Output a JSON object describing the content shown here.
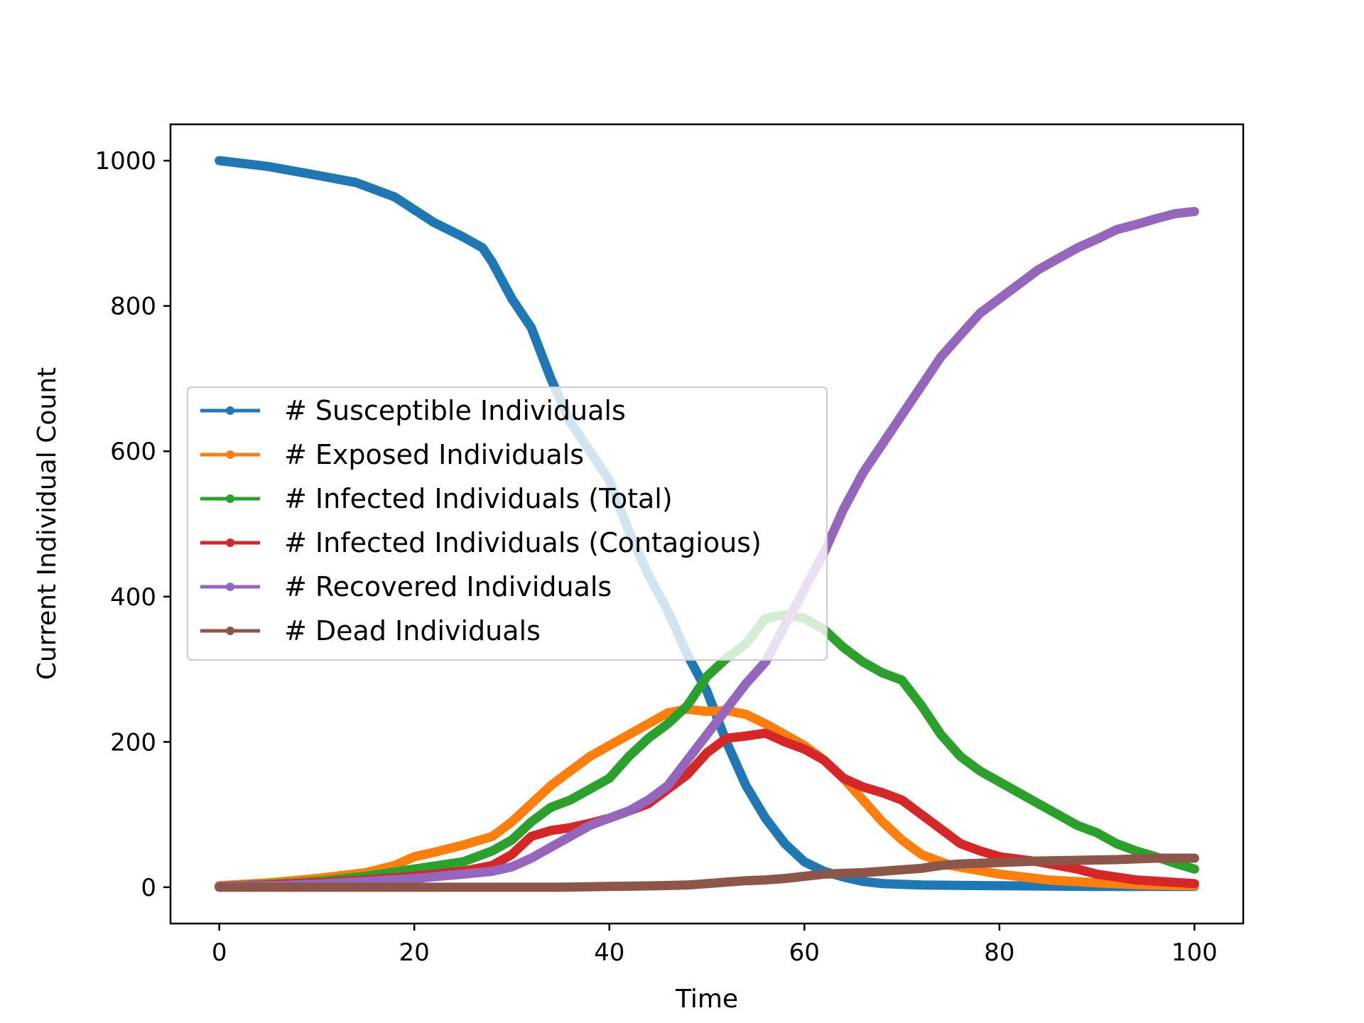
{
  "chart_data": {
    "type": "line",
    "title": "",
    "xlabel": "Time",
    "ylabel": "Current Individual Count",
    "xlim": [
      -5,
      105
    ],
    "ylim": [
      -50,
      1050
    ],
    "xticks": [
      0,
      20,
      40,
      60,
      80,
      100
    ],
    "yticks": [
      0,
      200,
      400,
      600,
      800,
      1000
    ],
    "grid": false,
    "legend_position": "center-left",
    "series": [
      {
        "name": "# Susceptible Individuals",
        "color": "#1f77b4",
        "points": [
          [
            0,
            1000
          ],
          [
            5,
            992
          ],
          [
            10,
            980
          ],
          [
            14,
            970
          ],
          [
            18,
            950
          ],
          [
            22,
            915
          ],
          [
            25,
            895
          ],
          [
            27,
            880
          ],
          [
            28,
            860
          ],
          [
            30,
            810
          ],
          [
            32,
            770
          ],
          [
            34,
            700
          ],
          [
            36,
            640
          ],
          [
            38,
            600
          ],
          [
            40,
            560
          ],
          [
            42,
            490
          ],
          [
            44,
            430
          ],
          [
            46,
            380
          ],
          [
            48,
            320
          ],
          [
            50,
            270
          ],
          [
            52,
            200
          ],
          [
            54,
            140
          ],
          [
            56,
            95
          ],
          [
            58,
            60
          ],
          [
            60,
            35
          ],
          [
            62,
            22
          ],
          [
            64,
            14
          ],
          [
            66,
            8
          ],
          [
            68,
            5
          ],
          [
            72,
            3
          ],
          [
            80,
            2
          ],
          [
            90,
            1
          ],
          [
            100,
            1
          ]
        ]
      },
      {
        "name": "# Exposed Individuals",
        "color": "#ff7f0e",
        "points": [
          [
            0,
            2
          ],
          [
            5,
            6
          ],
          [
            10,
            12
          ],
          [
            15,
            20
          ],
          [
            18,
            30
          ],
          [
            20,
            42
          ],
          [
            22,
            48
          ],
          [
            25,
            58
          ],
          [
            28,
            70
          ],
          [
            30,
            90
          ],
          [
            32,
            115
          ],
          [
            34,
            140
          ],
          [
            36,
            160
          ],
          [
            38,
            180
          ],
          [
            40,
            195
          ],
          [
            42,
            210
          ],
          [
            44,
            225
          ],
          [
            46,
            240
          ],
          [
            48,
            245
          ],
          [
            50,
            242
          ],
          [
            52,
            243
          ],
          [
            54,
            238
          ],
          [
            56,
            225
          ],
          [
            58,
            210
          ],
          [
            60,
            195
          ],
          [
            62,
            175
          ],
          [
            64,
            150
          ],
          [
            66,
            120
          ],
          [
            68,
            90
          ],
          [
            70,
            65
          ],
          [
            72,
            45
          ],
          [
            75,
            30
          ],
          [
            80,
            18
          ],
          [
            85,
            10
          ],
          [
            90,
            6
          ],
          [
            95,
            3
          ],
          [
            100,
            2
          ]
        ]
      },
      {
        "name": "# Infected Individuals (Total)",
        "color": "#2ca02c",
        "points": [
          [
            0,
            1
          ],
          [
            5,
            4
          ],
          [
            10,
            8
          ],
          [
            15,
            15
          ],
          [
            20,
            25
          ],
          [
            25,
            35
          ],
          [
            28,
            50
          ],
          [
            30,
            65
          ],
          [
            32,
            90
          ],
          [
            34,
            110
          ],
          [
            36,
            120
          ],
          [
            38,
            135
          ],
          [
            40,
            150
          ],
          [
            42,
            180
          ],
          [
            44,
            205
          ],
          [
            46,
            225
          ],
          [
            48,
            250
          ],
          [
            50,
            290
          ],
          [
            52,
            315
          ],
          [
            54,
            335
          ],
          [
            56,
            370
          ],
          [
            58,
            375
          ],
          [
            60,
            370
          ],
          [
            62,
            355
          ],
          [
            64,
            330
          ],
          [
            66,
            310
          ],
          [
            68,
            295
          ],
          [
            70,
            285
          ],
          [
            72,
            250
          ],
          [
            74,
            210
          ],
          [
            76,
            180
          ],
          [
            78,
            160
          ],
          [
            80,
            145
          ],
          [
            82,
            130
          ],
          [
            84,
            115
          ],
          [
            86,
            100
          ],
          [
            88,
            85
          ],
          [
            90,
            75
          ],
          [
            92,
            60
          ],
          [
            94,
            50
          ],
          [
            96,
            42
          ],
          [
            98,
            33
          ],
          [
            100,
            25
          ]
        ]
      },
      {
        "name": "# Infected Individuals (Contagious)",
        "color": "#d62728",
        "points": [
          [
            0,
            1
          ],
          [
            5,
            3
          ],
          [
            10,
            6
          ],
          [
            15,
            10
          ],
          [
            20,
            15
          ],
          [
            25,
            22
          ],
          [
            28,
            30
          ],
          [
            30,
            45
          ],
          [
            32,
            70
          ],
          [
            34,
            78
          ],
          [
            36,
            82
          ],
          [
            38,
            88
          ],
          [
            40,
            95
          ],
          [
            42,
            105
          ],
          [
            44,
            115
          ],
          [
            46,
            135
          ],
          [
            48,
            155
          ],
          [
            50,
            185
          ],
          [
            52,
            205
          ],
          [
            54,
            208
          ],
          [
            56,
            212
          ],
          [
            58,
            200
          ],
          [
            60,
            190
          ],
          [
            62,
            175
          ],
          [
            64,
            150
          ],
          [
            66,
            138
          ],
          [
            68,
            130
          ],
          [
            70,
            120
          ],
          [
            72,
            100
          ],
          [
            74,
            80
          ],
          [
            76,
            60
          ],
          [
            78,
            50
          ],
          [
            80,
            42
          ],
          [
            84,
            35
          ],
          [
            88,
            25
          ],
          [
            90,
            18
          ],
          [
            94,
            10
          ],
          [
            100,
            5
          ]
        ]
      },
      {
        "name": "# Recovered Individuals",
        "color": "#9467bd",
        "points": [
          [
            0,
            1
          ],
          [
            5,
            2
          ],
          [
            10,
            4
          ],
          [
            15,
            8
          ],
          [
            20,
            12
          ],
          [
            25,
            18
          ],
          [
            28,
            22
          ],
          [
            30,
            28
          ],
          [
            32,
            40
          ],
          [
            34,
            55
          ],
          [
            36,
            70
          ],
          [
            38,
            85
          ],
          [
            40,
            95
          ],
          [
            42,
            105
          ],
          [
            44,
            120
          ],
          [
            46,
            140
          ],
          [
            48,
            175
          ],
          [
            50,
            210
          ],
          [
            52,
            245
          ],
          [
            54,
            280
          ],
          [
            56,
            310
          ],
          [
            58,
            360
          ],
          [
            60,
            410
          ],
          [
            62,
            460
          ],
          [
            64,
            520
          ],
          [
            66,
            570
          ],
          [
            68,
            610
          ],
          [
            70,
            650
          ],
          [
            72,
            690
          ],
          [
            74,
            730
          ],
          [
            76,
            760
          ],
          [
            78,
            790
          ],
          [
            80,
            810
          ],
          [
            82,
            830
          ],
          [
            84,
            850
          ],
          [
            86,
            865
          ],
          [
            88,
            880
          ],
          [
            90,
            892
          ],
          [
            92,
            905
          ],
          [
            94,
            912
          ],
          [
            96,
            920
          ],
          [
            98,
            927
          ],
          [
            100,
            930
          ]
        ]
      },
      {
        "name": "# Dead Individuals",
        "color": "#8c564b",
        "points": [
          [
            0,
            0
          ],
          [
            20,
            0
          ],
          [
            35,
            0
          ],
          [
            40,
            1
          ],
          [
            45,
            2
          ],
          [
            48,
            3
          ],
          [
            50,
            5
          ],
          [
            52,
            7
          ],
          [
            54,
            9
          ],
          [
            56,
            10
          ],
          [
            58,
            12
          ],
          [
            60,
            15
          ],
          [
            62,
            18
          ],
          [
            64,
            19
          ],
          [
            66,
            20
          ],
          [
            68,
            22
          ],
          [
            70,
            24
          ],
          [
            72,
            26
          ],
          [
            74,
            30
          ],
          [
            76,
            32
          ],
          [
            78,
            33
          ],
          [
            80,
            34
          ],
          [
            84,
            36
          ],
          [
            88,
            37
          ],
          [
            92,
            38
          ],
          [
            96,
            40
          ],
          [
            100,
            40
          ]
        ]
      }
    ]
  }
}
